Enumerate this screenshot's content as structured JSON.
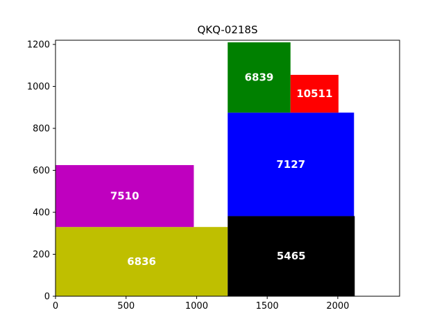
{
  "chart_data": {
    "type": "treemap",
    "title": "QKQ-0218S",
    "xlim": [
      0,
      2438
    ],
    "ylim": [
      0,
      1220
    ],
    "xticks": [
      0,
      500,
      1000,
      1500,
      2000
    ],
    "yticks": [
      0,
      200,
      400,
      600,
      800,
      1000,
      1200
    ],
    "grid": false,
    "rects": [
      {
        "label": "6836",
        "x0": 0,
        "y0": 0,
        "x1": 1220,
        "y1": 330,
        "color": "#bfbf00"
      },
      {
        "label": "7510",
        "x0": 0,
        "y0": 330,
        "x1": 980,
        "y1": 625,
        "color": "#bf00bf"
      },
      {
        "label": "5465",
        "x0": 1220,
        "y0": 0,
        "x1": 2120,
        "y1": 382,
        "color": "#000000"
      },
      {
        "label": "7127",
        "x0": 1220,
        "y0": 382,
        "x1": 2115,
        "y1": 875,
        "color": "#0000ff"
      },
      {
        "label": "6839",
        "x0": 1220,
        "y0": 875,
        "x1": 1665,
        "y1": 1210,
        "color": "#008000"
      },
      {
        "label": "10511",
        "x0": 1665,
        "y0": 875,
        "x1": 2005,
        "y1": 1055,
        "color": "#ff0000"
      }
    ]
  }
}
